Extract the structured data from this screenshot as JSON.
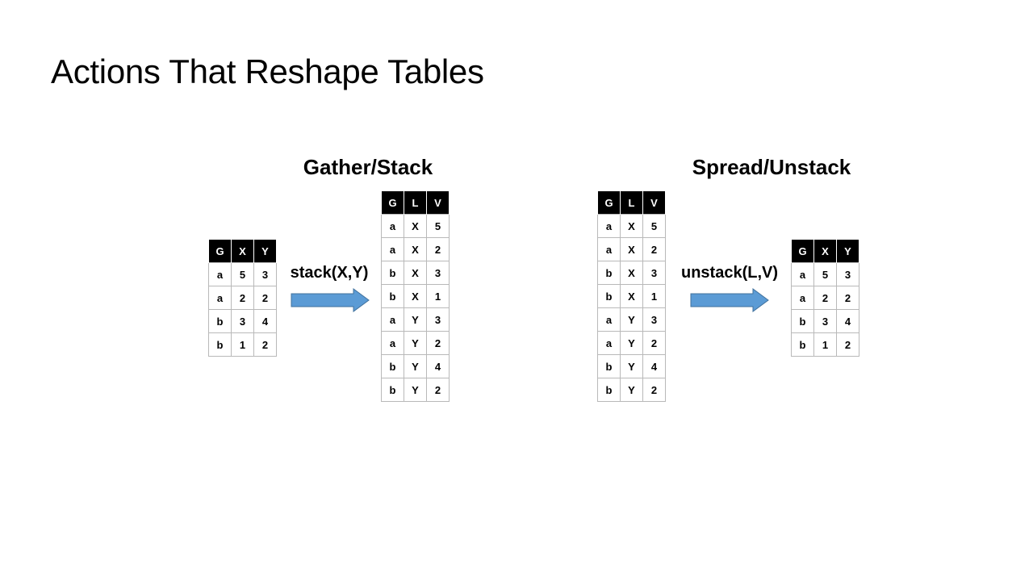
{
  "title": "Actions That Reshape Tables",
  "sections": {
    "gather": {
      "heading": "Gather/Stack",
      "operation": "stack(X,Y)",
      "input_table": {
        "columns": [
          "G",
          "X",
          "Y"
        ],
        "rows": [
          [
            "a",
            "5",
            "3"
          ],
          [
            "a",
            "2",
            "2"
          ],
          [
            "b",
            "3",
            "4"
          ],
          [
            "b",
            "1",
            "2"
          ]
        ]
      },
      "output_table": {
        "columns": [
          "G",
          "L",
          "V"
        ],
        "rows": [
          [
            "a",
            "X",
            "5"
          ],
          [
            "a",
            "X",
            "2"
          ],
          [
            "b",
            "X",
            "3"
          ],
          [
            "b",
            "X",
            "1"
          ],
          [
            "a",
            "Y",
            "3"
          ],
          [
            "a",
            "Y",
            "2"
          ],
          [
            "b",
            "Y",
            "4"
          ],
          [
            "b",
            "Y",
            "2"
          ]
        ]
      }
    },
    "spread": {
      "heading": "Spread/Unstack",
      "operation": "unstack(L,V)",
      "input_table": {
        "columns": [
          "G",
          "L",
          "V"
        ],
        "rows": [
          [
            "a",
            "X",
            "5"
          ],
          [
            "a",
            "X",
            "2"
          ],
          [
            "b",
            "X",
            "3"
          ],
          [
            "b",
            "X",
            "1"
          ],
          [
            "a",
            "Y",
            "3"
          ],
          [
            "a",
            "Y",
            "2"
          ],
          [
            "b",
            "Y",
            "4"
          ],
          [
            "b",
            "Y",
            "2"
          ]
        ]
      },
      "output_table": {
        "columns": [
          "G",
          "X",
          "Y"
        ],
        "rows": [
          [
            "a",
            "5",
            "3"
          ],
          [
            "a",
            "2",
            "2"
          ],
          [
            "b",
            "3",
            "4"
          ],
          [
            "b",
            "1",
            "2"
          ]
        ]
      }
    }
  },
  "colors": {
    "arrow_fill": "#5b9bd5",
    "arrow_stroke": "#41719c",
    "header_bg": "#000000",
    "cell_border": "#b9b9b9"
  }
}
